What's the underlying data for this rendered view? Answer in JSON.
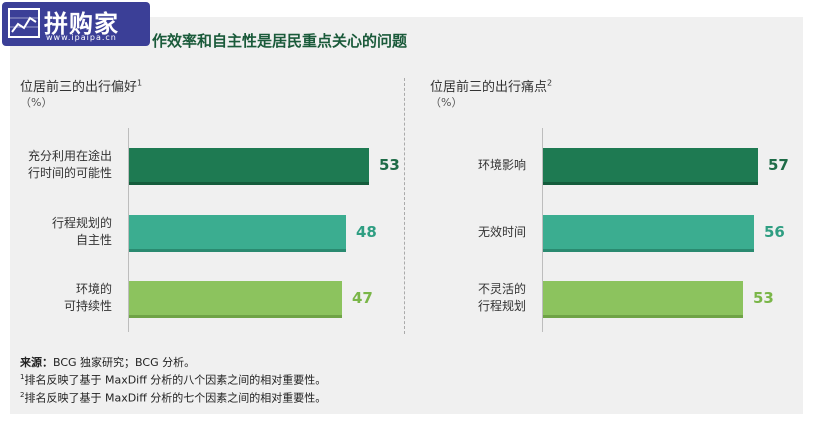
{
  "watermark": {
    "text": "拼购家",
    "url": "www.ipaipa.cn"
  },
  "title": "作效率和自主性是居民重点关心的问题",
  "left": {
    "title": "位居前三的出行偏好",
    "note": "1",
    "unit": "（%）"
  },
  "right": {
    "title": "位居前三的出行痛点",
    "note": "2",
    "unit": "（%）"
  },
  "chart_data": [
    {
      "type": "bar",
      "orientation": "horizontal",
      "title": "位居前三的出行偏好",
      "unit": "（%）",
      "categories": [
        "充分利用在途出\n行时间的可能性",
        "行程规划的\n自主性",
        "环境的\n可持续性"
      ],
      "values": [
        53,
        48,
        47
      ],
      "colors": [
        "#1e7a52",
        "#3bad90",
        "#8cc35e"
      ],
      "xlim": [
        0,
        60
      ]
    },
    {
      "type": "bar",
      "orientation": "horizontal",
      "title": "位居前三的出行痛点",
      "unit": "（%）",
      "categories": [
        "环境影响",
        "无效时间",
        "不灵活的\n行程规划"
      ],
      "values": [
        57,
        56,
        53
      ],
      "colors": [
        "#1e7a52",
        "#3bad90",
        "#8cc35e"
      ],
      "xlim": [
        0,
        60
      ]
    }
  ],
  "footer": {
    "source_label": "来源：",
    "source": "BCG 独家研究；BCG 分析。",
    "note1_mark": "1",
    "note1": "排名反映了基于 MaxDiff 分析的八个因素之间的相对重要性。",
    "note2_mark": "2",
    "note2": "排名反映了基于 MaxDiff 分析的七个因素之间的相对重要性。"
  }
}
